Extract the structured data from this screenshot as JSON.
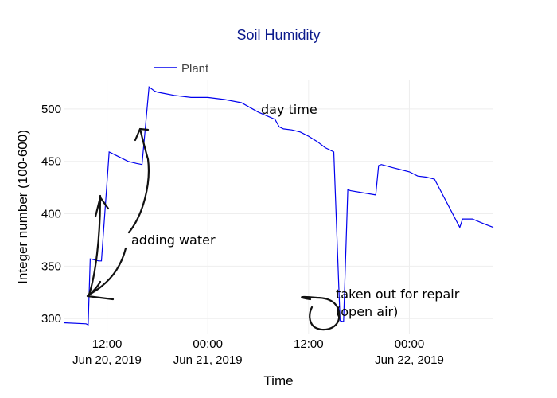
{
  "chart_data": {
    "type": "line",
    "title": "Soil Humidity",
    "xlabel": "Time",
    "ylabel": "Integer number (100-600)",
    "legend": {
      "entries": [
        "Plant"
      ],
      "placement": "top-left"
    },
    "line_color": "#0000ee",
    "title_color": "#0b1a8c",
    "grid": true,
    "xlim": [
      "2019-06-20T06:50",
      "2019-06-22T10:00"
    ],
    "ylim": [
      285,
      528
    ],
    "y_ticks": [
      300,
      350,
      400,
      450,
      500
    ],
    "x_ticks": [
      {
        "t": "2019-06-20T12:00",
        "time": "12:00",
        "date": "Jun 20, 2019"
      },
      {
        "t": "2019-06-21T00:00",
        "time": "00:00",
        "date": "Jun 21, 2019"
      },
      {
        "t": "2019-06-21T12:00",
        "time": "12:00",
        "date": ""
      },
      {
        "t": "2019-06-22T00:00",
        "time": "00:00",
        "date": "Jun 22, 2019"
      }
    ],
    "series": [
      {
        "name": "Plant",
        "x": [
          "2019-06-20T06:50",
          "2019-06-20T09:30",
          "2019-06-20T09:45",
          "2019-06-20T10:00",
          "2019-06-20T11:00",
          "2019-06-20T11:20",
          "2019-06-20T12:15",
          "2019-06-20T12:30",
          "2019-06-20T13:30",
          "2019-06-20T14:30",
          "2019-06-20T15:30",
          "2019-06-20T16:10",
          "2019-06-20T17:00",
          "2019-06-20T17:40",
          "2019-06-20T18:00",
          "2019-06-20T18:40",
          "2019-06-20T20:00",
          "2019-06-20T22:00",
          "2019-06-21T00:00",
          "2019-06-21T02:00",
          "2019-06-21T04:00",
          "2019-06-21T06:00",
          "2019-06-21T08:00",
          "2019-06-21T08:30",
          "2019-06-21T09:00",
          "2019-06-21T10:00",
          "2019-06-21T11:00",
          "2019-06-21T12:00",
          "2019-06-21T13:00",
          "2019-06-21T14:00",
          "2019-06-21T15:00",
          "2019-06-21T15:45",
          "2019-06-21T16:10",
          "2019-06-21T16:40",
          "2019-06-21T17:00",
          "2019-06-21T20:00",
          "2019-06-21T20:20",
          "2019-06-21T20:40",
          "2019-06-21T22:00",
          "2019-06-22T00:00",
          "2019-06-22T01:00",
          "2019-06-22T02:00",
          "2019-06-22T03:00",
          "2019-06-22T06:00",
          "2019-06-22T06:20",
          "2019-06-22T07:30",
          "2019-06-22T09:00",
          "2019-06-22T10:00"
        ],
        "y": [
          296,
          295,
          294,
          357,
          355,
          355,
          459,
          458,
          454,
          450,
          448,
          447,
          521,
          517,
          516,
          515,
          513,
          511,
          511,
          509,
          506,
          497,
          490,
          483,
          481,
          480,
          478,
          474,
          469,
          463,
          459,
          298,
          297,
          423,
          422,
          418,
          446,
          447,
          444,
          440,
          436,
          435,
          433,
          387,
          395,
          395,
          390,
          387
        ]
      }
    ],
    "annotations": [
      {
        "text": "day time"
      },
      {
        "text": "adding water"
      },
      {
        "text": "taken out for repair"
      },
      {
        "text": "(open air)"
      }
    ]
  }
}
